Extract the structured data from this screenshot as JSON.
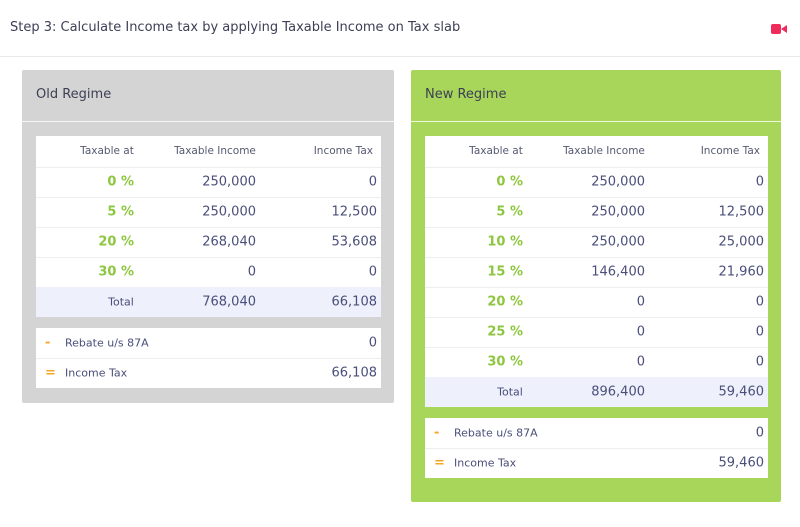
{
  "header": {
    "title": "Step 3: Calculate Income tax by applying Taxable Income on Tax slab"
  },
  "panels": [
    {
      "title": "Old Regime",
      "columns": [
        "Taxable at",
        "Taxable Income",
        "Income Tax"
      ],
      "rows": [
        [
          "0 %",
          "250,000",
          "0"
        ],
        [
          "5 %",
          "250,000",
          "12,500"
        ],
        [
          "20 %",
          "268,040",
          "53,608"
        ],
        [
          "30 %",
          "0",
          "0"
        ]
      ],
      "total": [
        "Total",
        "768,040",
        "66,108"
      ],
      "summary": [
        [
          "-",
          "Rebate u/s 87A",
          "0"
        ],
        [
          "=",
          "Income Tax",
          "66,108"
        ]
      ]
    },
    {
      "title": "New Regime",
      "columns": [
        "Taxable at",
        "Taxable Income",
        "Income Tax"
      ],
      "rows": [
        [
          "0 %",
          "250,000",
          "0"
        ],
        [
          "5 %",
          "250,000",
          "12,500"
        ],
        [
          "10 %",
          "250,000",
          "25,000"
        ],
        [
          "15 %",
          "146,400",
          "21,960"
        ],
        [
          "20 %",
          "0",
          "0"
        ],
        [
          "25 %",
          "0",
          "0"
        ],
        [
          "30 %",
          "0",
          "0"
        ]
      ],
      "total": [
        "Total",
        "896,400",
        "59,460"
      ],
      "summary": [
        [
          "-",
          "Rebate u/s 87A",
          "0"
        ],
        [
          "=",
          "Income Tax",
          "59,460"
        ]
      ]
    }
  ]
}
